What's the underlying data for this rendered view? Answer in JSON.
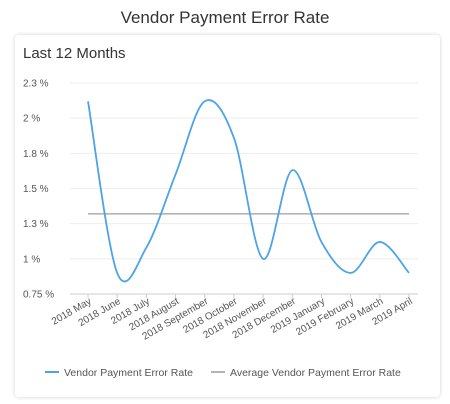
{
  "page": {
    "title": "Vendor Payment Error Rate"
  },
  "panel": {
    "subtitle": "Last 12 Months"
  },
  "chart_data": {
    "type": "line",
    "title": "Vendor Payment Error Rate",
    "subtitle": "Last 12 Months",
    "categories": [
      "2018 May",
      "2018 June",
      "2018 July",
      "2018 August",
      "2018 September",
      "2018 October",
      "2018 November",
      "2018 December",
      "2019 January",
      "2019 February",
      "2019 March",
      "2019 April"
    ],
    "series": [
      {
        "name": "Vendor Payment Error Rate",
        "values": [
          2.12,
          0.9,
          1.08,
          1.6,
          2.12,
          1.86,
          1.0,
          1.63,
          1.12,
          0.9,
          1.12,
          0.9
        ],
        "color": "#4da3e8"
      },
      {
        "name": "Average Vendor Payment Error Rate",
        "values": [
          1.32,
          1.32,
          1.32,
          1.32,
          1.32,
          1.32,
          1.32,
          1.32,
          1.32,
          1.32,
          1.32,
          1.32
        ],
        "color": "#b3b3b3"
      }
    ],
    "yticks": [
      {
        "value": 0.75,
        "label": "0.75 %"
      },
      {
        "value": 1.0,
        "label": "1 %"
      },
      {
        "value": 1.25,
        "label": "1.3 %"
      },
      {
        "value": 1.5,
        "label": "1.5 %"
      },
      {
        "value": 1.75,
        "label": "1.8 %"
      },
      {
        "value": 2.0,
        "label": "2 %"
      },
      {
        "value": 2.25,
        "label": "2.3 %"
      }
    ],
    "ylim": [
      0.75,
      2.25
    ],
    "grid": true,
    "legend": "bottom"
  }
}
